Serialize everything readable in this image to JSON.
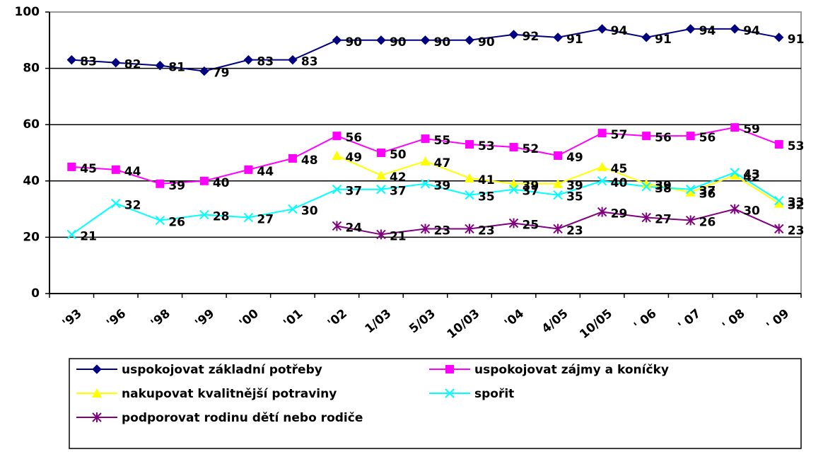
{
  "chart_data": {
    "type": "line",
    "categories": [
      "'93",
      "'96",
      "'98",
      "'99",
      "'00",
      "'01",
      "'02",
      "1/03",
      "5/03",
      "10/03",
      "'04",
      "4/05",
      "10/05",
      "' 06",
      "' 07",
      "' 08",
      "' 09"
    ],
    "series": [
      {
        "name": "uspokojovat základní potřeby",
        "color": "#000080",
        "marker": "diamond",
        "values": [
          83,
          82,
          81,
          79,
          83,
          83,
          90,
          90,
          90,
          90,
          92,
          91,
          94,
          91,
          94,
          94,
          91
        ]
      },
      {
        "name": "uspokojovat zájmy a koníčky",
        "color": "#ff00ff",
        "marker": "square",
        "values": [
          45,
          44,
          39,
          40,
          44,
          48,
          56,
          50,
          55,
          53,
          52,
          49,
          57,
          56,
          56,
          59,
          53
        ]
      },
      {
        "name": "nakupovat kvalitnější potraviny",
        "color": "#ffff00",
        "marker": "triangle",
        "values": [
          null,
          null,
          null,
          null,
          null,
          null,
          49,
          42,
          47,
          41,
          39,
          39,
          45,
          39,
          36,
          42,
          32
        ]
      },
      {
        "name": "spořit",
        "color": "#00ffff",
        "marker": "x",
        "values": [
          21,
          32,
          26,
          28,
          27,
          30,
          37,
          37,
          39,
          35,
          37,
          35,
          40,
          38,
          37,
          43,
          33
        ]
      },
      {
        "name": "podporovat rodinu dětí nebo rodiče",
        "color": "#800080",
        "marker": "star",
        "values": [
          null,
          null,
          null,
          null,
          null,
          null,
          24,
          21,
          23,
          23,
          25,
          23,
          29,
          27,
          26,
          30,
          23
        ]
      }
    ],
    "ylim": [
      0,
      100
    ],
    "yticks": [
      0,
      20,
      40,
      60,
      80,
      100
    ],
    "grid": true
  }
}
